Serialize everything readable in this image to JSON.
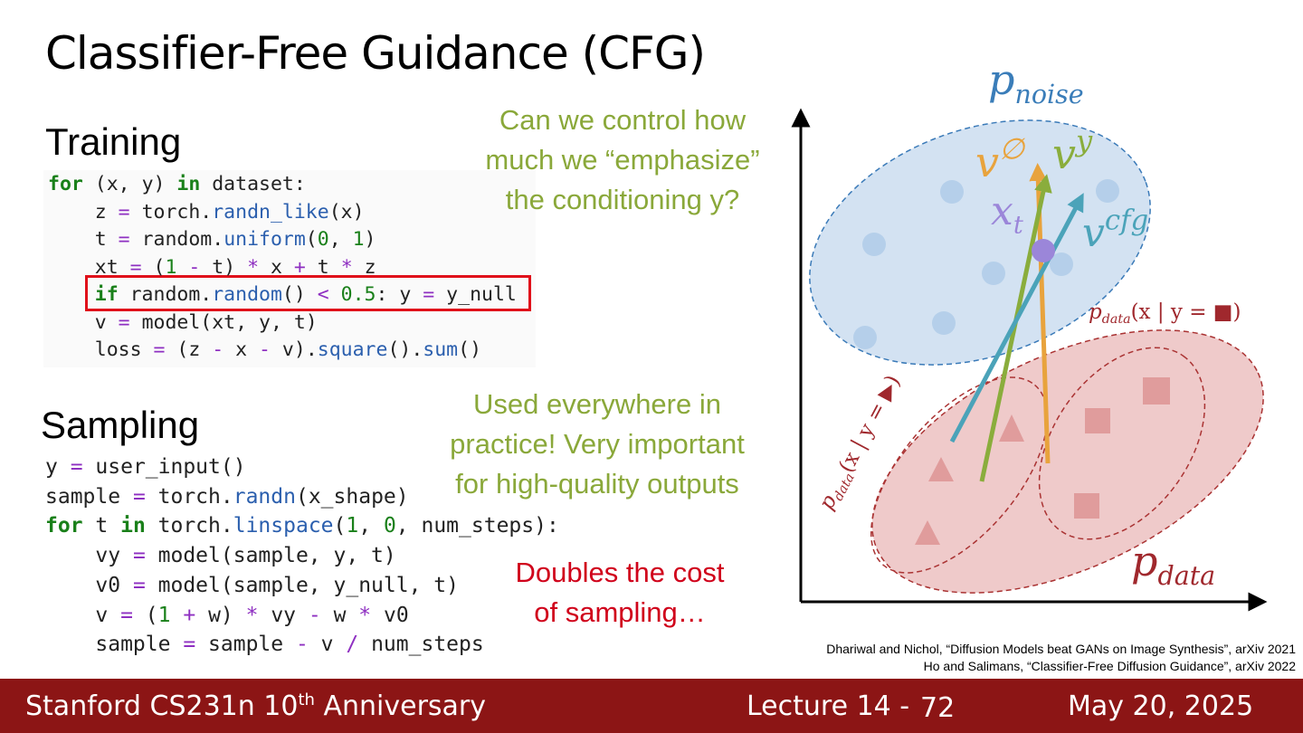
{
  "title": "Classifier-Free Guidance (CFG)",
  "training": {
    "heading": "Training",
    "lines": [
      [
        {
          "text": "for",
          "color": "#1a801a",
          "bold": true
        },
        {
          "text": " (x, y) "
        },
        {
          "text": "in",
          "color": "#1a801a",
          "bold": true
        },
        {
          "text": " dataset:"
        }
      ],
      [
        {
          "text": "    z "
        },
        {
          "text": "=",
          "color": "#8e2fc1"
        },
        {
          "text": " torch."
        },
        {
          "text": "randn_like",
          "color": "#2b5fae"
        },
        {
          "text": "(x)"
        }
      ],
      [
        {
          "text": "    t "
        },
        {
          "text": "=",
          "color": "#8e2fc1"
        },
        {
          "text": " random."
        },
        {
          "text": "uniform",
          "color": "#2b5fae"
        },
        {
          "text": "("
        },
        {
          "text": "0",
          "color": "#1a801a"
        },
        {
          "text": ", "
        },
        {
          "text": "1",
          "color": "#1a801a"
        },
        {
          "text": ")"
        }
      ],
      [
        {
          "text": "    xt "
        },
        {
          "text": "=",
          "color": "#8e2fc1"
        },
        {
          "text": " ("
        },
        {
          "text": "1",
          "color": "#1a801a"
        },
        {
          "text": " "
        },
        {
          "text": "-",
          "color": "#8e2fc1"
        },
        {
          "text": " t) "
        },
        {
          "text": "*",
          "color": "#8e2fc1"
        },
        {
          "text": " x "
        },
        {
          "text": "+",
          "color": "#8e2fc1"
        },
        {
          "text": " t "
        },
        {
          "text": "*",
          "color": "#8e2fc1"
        },
        {
          "text": " z"
        }
      ],
      [
        {
          "text": "    "
        },
        {
          "text": "if",
          "color": "#1a801a",
          "bold": true
        },
        {
          "text": " random."
        },
        {
          "text": "random",
          "color": "#2b5fae"
        },
        {
          "text": "() "
        },
        {
          "text": "<",
          "color": "#8e2fc1"
        },
        {
          "text": " "
        },
        {
          "text": "0.5",
          "color": "#1a801a"
        },
        {
          "text": ": y "
        },
        {
          "text": "=",
          "color": "#8e2fc1"
        },
        {
          "text": " y_null"
        }
      ],
      [
        {
          "text": "    v "
        },
        {
          "text": "=",
          "color": "#8e2fc1"
        },
        {
          "text": " model(xt, y, t)"
        }
      ],
      [
        {
          "text": "    loss "
        },
        {
          "text": "=",
          "color": "#8e2fc1"
        },
        {
          "text": " (z "
        },
        {
          "text": "-",
          "color": "#8e2fc1"
        },
        {
          "text": " x "
        },
        {
          "text": "-",
          "color": "#8e2fc1"
        },
        {
          "text": " v)."
        },
        {
          "text": "square",
          "color": "#2b5fae"
        },
        {
          "text": "()."
        },
        {
          "text": "sum",
          "color": "#2b5fae"
        },
        {
          "text": "()"
        }
      ]
    ]
  },
  "sampling": {
    "heading": "Sampling",
    "lines": [
      [
        {
          "text": "y "
        },
        {
          "text": "=",
          "color": "#8e2fc1"
        },
        {
          "text": " user_input()"
        }
      ],
      [
        {
          "text": "sample "
        },
        {
          "text": "=",
          "color": "#8e2fc1"
        },
        {
          "text": " torch."
        },
        {
          "text": "randn",
          "color": "#2b5fae"
        },
        {
          "text": "(x_shape)"
        }
      ],
      [
        {
          "text": "for",
          "color": "#1a801a",
          "bold": true
        },
        {
          "text": " t "
        },
        {
          "text": "in",
          "color": "#1a801a",
          "bold": true
        },
        {
          "text": " torch."
        },
        {
          "text": "linspace",
          "color": "#2b5fae"
        },
        {
          "text": "("
        },
        {
          "text": "1",
          "color": "#1a801a"
        },
        {
          "text": ", "
        },
        {
          "text": "0",
          "color": "#1a801a"
        },
        {
          "text": ", num_steps):"
        }
      ],
      [
        {
          "text": "    vy "
        },
        {
          "text": "=",
          "color": "#8e2fc1"
        },
        {
          "text": " model(sample, y, t)"
        }
      ],
      [
        {
          "text": "    v0 "
        },
        {
          "text": "=",
          "color": "#8e2fc1"
        },
        {
          "text": " model(sample, y_null, t)"
        }
      ],
      [
        {
          "text": "    v "
        },
        {
          "text": "=",
          "color": "#8e2fc1"
        },
        {
          "text": " ("
        },
        {
          "text": "1",
          "color": "#1a801a"
        },
        {
          "text": " "
        },
        {
          "text": "+",
          "color": "#8e2fc1"
        },
        {
          "text": " w) "
        },
        {
          "text": "*",
          "color": "#8e2fc1"
        },
        {
          "text": " vy "
        },
        {
          "text": "-",
          "color": "#8e2fc1"
        },
        {
          "text": " w "
        },
        {
          "text": "*",
          "color": "#8e2fc1"
        },
        {
          "text": " v0"
        }
      ],
      [
        {
          "text": "    sample "
        },
        {
          "text": "=",
          "color": "#8e2fc1"
        },
        {
          "text": " sample "
        },
        {
          "text": "-",
          "color": "#8e2fc1"
        },
        {
          "text": " v "
        },
        {
          "text": "/",
          "color": "#8e2fc1"
        },
        {
          "text": " num_steps"
        }
      ]
    ]
  },
  "notes": {
    "question": [
      "Can we control how",
      "much we “emphasize”",
      "the conditioning y?"
    ],
    "practice": [
      "Used everywhere in",
      "practice! Very important",
      "for high-quality outputs"
    ],
    "cost": [
      "Doubles the cost",
      "of sampling…"
    ]
  },
  "diagram": {
    "labels": [
      {
        "base": "p",
        "sub": "noise",
        "color": "#3a7db9"
      },
      {
        "base": "v",
        "sup": "∅",
        "color": "#e8a33d"
      },
      {
        "base": "v",
        "sup": "y",
        "color": "#8aad3c"
      },
      {
        "base": "x",
        "sub": "t",
        "color": "#9b86d9"
      },
      {
        "base": "v",
        "sup": "cfg",
        "color": "#4ba3b9"
      },
      {
        "base": "p",
        "sub": "data",
        "rest": "(x | y = ■)",
        "color": "#a0282d"
      },
      {
        "base": "p",
        "sub": "data",
        "rest": "(x | y = ▶)",
        "color": "#a0282d"
      },
      {
        "base": "p",
        "sub": "data",
        "color": "#a0282d"
      }
    ]
  },
  "citations": [
    "Dhariwal and Nichol, “Diffusion Models beat GANs on Image Synthesis”, arXiv 2021",
    "Ho and Salimans, “Classifier-Free Diffusion Guidance”, arXiv 2022"
  ],
  "footer": {
    "course": "Stanford CS231n 10",
    "course_sup": "th",
    "course_rest": " Anniversary",
    "lecture": "Lecture 14 -",
    "page": "72",
    "date": "May 20, 2025"
  }
}
